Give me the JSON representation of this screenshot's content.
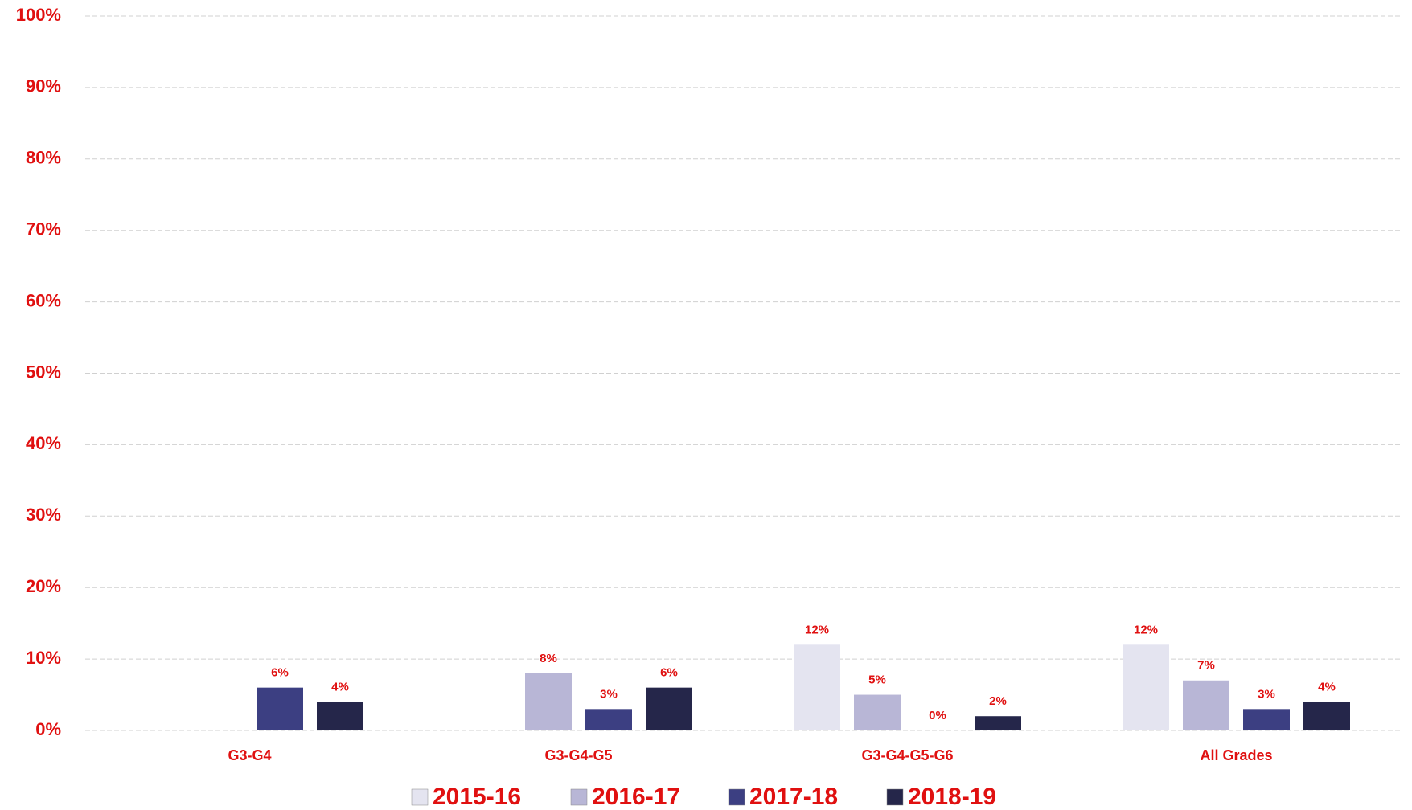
{
  "chart_data": {
    "type": "bar",
    "categories": [
      "G3-G4",
      "G3-G4-G5",
      "G3-G4-G5-G6",
      "All Grades"
    ],
    "series": [
      {
        "name": "2015-16",
        "color": "#e4e4f0",
        "values": [
          null,
          null,
          12,
          12
        ],
        "value_labels": [
          null,
          null,
          "12%",
          "12%"
        ]
      },
      {
        "name": "2016-17",
        "color": "#b8b6d6",
        "values": [
          null,
          8,
          5,
          7
        ],
        "value_labels": [
          null,
          "8%",
          "5%",
          "7%"
        ]
      },
      {
        "name": "2017-18",
        "color": "#3c3f82",
        "values": [
          6,
          3,
          0,
          3
        ],
        "value_labels": [
          "6%",
          "3%",
          "0%",
          "3%"
        ]
      },
      {
        "name": "2018-19",
        "color": "#25264a",
        "values": [
          4,
          6,
          2,
          4
        ],
        "value_labels": [
          "4%",
          "6%",
          "2%",
          "4%"
        ]
      }
    ],
    "ylim": [
      0,
      100
    ],
    "yticks": [
      {
        "value": 0,
        "label": "0%"
      },
      {
        "value": 10,
        "label": "10%"
      },
      {
        "value": 20,
        "label": "20%"
      },
      {
        "value": 30,
        "label": "30%"
      },
      {
        "value": 40,
        "label": "40%"
      },
      {
        "value": 50,
        "label": "50%"
      },
      {
        "value": 60,
        "label": "60%"
      },
      {
        "value": 70,
        "label": "70%"
      },
      {
        "value": 80,
        "label": "80%"
      },
      {
        "value": 90,
        "label": "90%"
      },
      {
        "value": 100,
        "label": "100%"
      }
    ],
    "grid": true,
    "legend": "bottom"
  }
}
